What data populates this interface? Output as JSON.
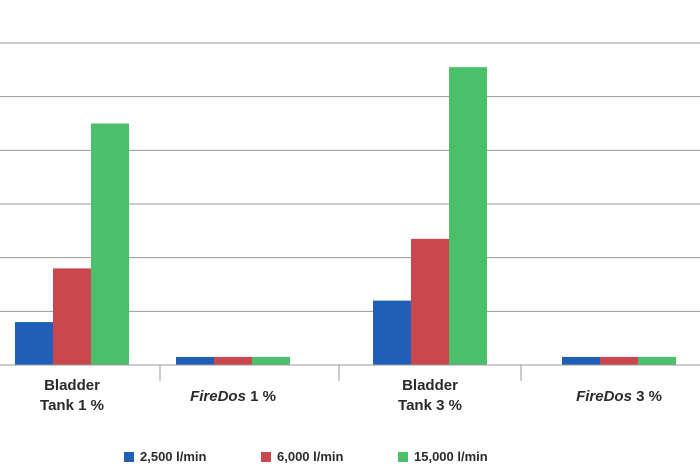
{
  "chart_data": {
    "type": "bar",
    "categories": [
      {
        "id": "bladder-1",
        "lines": [
          [
            "Bladder",
            false
          ],
          [
            "Tank 1 %",
            false
          ]
        ]
      },
      {
        "id": "firedos-1",
        "lines": [
          [
            [
              "FireDos",
              true
            ],
            [
              " 1 %",
              false
            ]
          ]
        ]
      },
      {
        "id": "bladder-3",
        "lines": [
          [
            "Bladder",
            false
          ],
          [
            "Tank 3 %",
            false
          ]
        ]
      },
      {
        "id": "firedos-3",
        "lines": [
          [
            [
              "FireDos",
              true
            ],
            [
              " 3 %",
              false
            ]
          ]
        ]
      }
    ],
    "category_text": [
      "Bladder Tank 1 %",
      "FireDos 1 %",
      "Bladder Tank 3 %",
      "FireDos 3 %"
    ],
    "series": [
      {
        "name": "2,500 l/min",
        "color": "#1f5fb8",
        "values": [
          0.8,
          0.15,
          1.2,
          0.15
        ]
      },
      {
        "name": "6,000 l/min",
        "color": "#c9474d",
        "values": [
          1.8,
          0.15,
          2.35,
          0.15
        ]
      },
      {
        "name": "15,000 l/min",
        "color": "#4bbf6a",
        "values": [
          4.5,
          0.15,
          5.55,
          0.15
        ]
      }
    ],
    "ylim": [
      0,
      6
    ],
    "grid": true,
    "legend_position": "bottom",
    "xlabel": "",
    "ylabel": "",
    "title": ""
  }
}
